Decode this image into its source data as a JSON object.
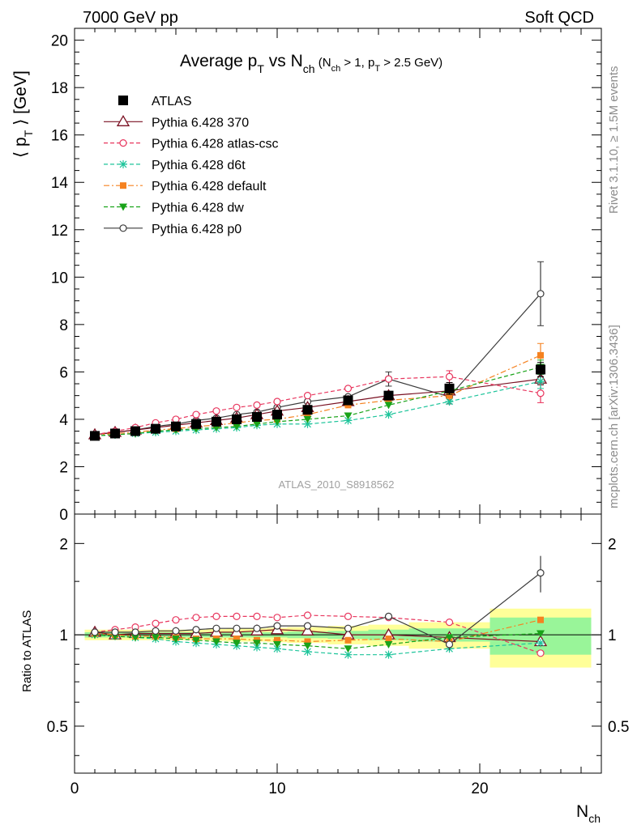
{
  "header": {
    "energy_label": "7000 GeV pp",
    "process_label": "Soft QCD",
    "plot_title": "Average p_T vs N_ch",
    "title_main": "Average p",
    "title_sub_T": "T",
    "title_vs": " vs N",
    "title_sub_ch": "ch",
    "title_cuts_a": " (N",
    "title_cuts_b": " > 1, p",
    "title_cuts_c": " > 2.5 GeV)",
    "analysis_id": "ATLAS_2010_S8918562",
    "side_rivet": "Rivet 3.1.10, ≥ 1.5M events",
    "side_mcplots": "mcplots.cern.ch [arXiv:1306.3436]"
  },
  "axes": {
    "ylabel_main": "⟨ p_T ⟩ [GeV]",
    "ylabel_ratio": "Ratio to ATLAS",
    "xlabel": "N_ch",
    "xlabel_main": "N",
    "xlabel_sub": "ch"
  },
  "chart_data": [
    {
      "panel": "main",
      "type": "scatter",
      "xlim": [
        0,
        26
      ],
      "ylim": [
        0,
        20.5
      ],
      "x_ticks": [
        0,
        10,
        20
      ],
      "y_ticks": [
        0,
        2,
        4,
        6,
        8,
        10,
        12,
        14,
        16,
        18,
        20
      ],
      "grid": false,
      "legend_position": "top-left",
      "x": [
        1,
        2,
        3,
        4,
        5,
        6,
        7,
        8,
        9,
        10,
        11.5,
        13.5,
        15.5,
        18.5,
        23
      ],
      "series": [
        {
          "name": "ATLAS",
          "style": "data",
          "color": "#000000",
          "marker": "filled-square",
          "values": [
            3.3,
            3.4,
            3.5,
            3.6,
            3.7,
            3.8,
            3.9,
            4.0,
            4.1,
            4.2,
            4.4,
            4.8,
            5.0,
            5.3,
            6.1
          ],
          "errors": [
            0.05,
            0.05,
            0.05,
            0.05,
            0.05,
            0.05,
            0.05,
            0.05,
            0.05,
            0.06,
            0.08,
            0.1,
            0.15,
            0.25,
            0.3
          ]
        },
        {
          "name": "Pythia 6.428 370",
          "style": "solid",
          "color": "#7a1022",
          "marker": "open-triangle",
          "values": [
            3.35,
            3.45,
            3.55,
            3.65,
            3.75,
            3.85,
            3.95,
            4.05,
            4.2,
            4.35,
            4.5,
            4.75,
            5.0,
            5.2,
            5.7
          ],
          "errors": [
            0.02,
            0.02,
            0.02,
            0.02,
            0.02,
            0.02,
            0.03,
            0.03,
            0.03,
            0.04,
            0.05,
            0.07,
            0.1,
            0.15,
            0.25
          ]
        },
        {
          "name": "Pythia 6.428 atlas-csc",
          "style": "dashed",
          "color": "#e8365e",
          "marker": "open-circle",
          "values": [
            3.35,
            3.5,
            3.65,
            3.85,
            4.0,
            4.2,
            4.35,
            4.5,
            4.6,
            4.75,
            5.0,
            5.3,
            5.7,
            5.8,
            5.1
          ],
          "errors": [
            0.02,
            0.02,
            0.02,
            0.03,
            0.03,
            0.03,
            0.03,
            0.04,
            0.04,
            0.05,
            0.06,
            0.1,
            0.15,
            0.25,
            0.4
          ]
        },
        {
          "name": "Pythia 6.428 d6t",
          "style": "dashed",
          "color": "#1cc49a",
          "marker": "star",
          "values": [
            3.3,
            3.35,
            3.4,
            3.45,
            3.5,
            3.55,
            3.6,
            3.65,
            3.75,
            3.8,
            3.8,
            3.95,
            4.2,
            4.75,
            5.6
          ],
          "errors": [
            0.02,
            0.02,
            0.02,
            0.02,
            0.02,
            0.02,
            0.03,
            0.03,
            0.03,
            0.04,
            0.05,
            0.07,
            0.1,
            0.15,
            0.3
          ]
        },
        {
          "name": "Pythia 6.428 default",
          "style": "dashdot",
          "color": "#f58220",
          "marker": "filled-square-small",
          "values": [
            3.35,
            3.4,
            3.45,
            3.55,
            3.6,
            3.7,
            3.75,
            3.85,
            3.95,
            4.0,
            4.2,
            4.6,
            4.8,
            5.0,
            6.7
          ],
          "errors": [
            0.02,
            0.02,
            0.02,
            0.02,
            0.02,
            0.02,
            0.03,
            0.03,
            0.03,
            0.04,
            0.05,
            0.07,
            0.1,
            0.2,
            0.5
          ]
        },
        {
          "name": "Pythia 6.428 dw",
          "style": "dashed",
          "color": "#19a319",
          "marker": "filled-triangle-down",
          "values": [
            3.3,
            3.35,
            3.4,
            3.5,
            3.55,
            3.6,
            3.65,
            3.7,
            3.8,
            3.9,
            4.0,
            4.15,
            4.6,
            5.2,
            6.2
          ],
          "errors": [
            0.02,
            0.02,
            0.02,
            0.02,
            0.02,
            0.02,
            0.03,
            0.03,
            0.03,
            0.04,
            0.05,
            0.07,
            0.1,
            0.15,
            0.3
          ]
        },
        {
          "name": "Pythia 6.428 p0",
          "style": "solid",
          "color": "#3a3a3a",
          "marker": "open-circle",
          "values": [
            3.35,
            3.45,
            3.55,
            3.7,
            3.8,
            3.95,
            4.05,
            4.2,
            4.3,
            4.5,
            4.75,
            4.95,
            5.7,
            4.95,
            9.3
          ],
          "errors": [
            0.02,
            0.02,
            0.02,
            0.03,
            0.03,
            0.03,
            0.04,
            0.04,
            0.05,
            0.06,
            0.08,
            0.12,
            0.3,
            0.3,
            1.35
          ]
        }
      ]
    },
    {
      "panel": "ratio",
      "type": "scatter",
      "log_y": true,
      "xlim": [
        0,
        26
      ],
      "ylim": [
        0.35,
        2.5
      ],
      "x_ticks": [
        0,
        10,
        20
      ],
      "y_ticks": [
        0.5,
        1,
        2
      ],
      "reference_line": 1,
      "x": [
        1,
        2,
        3,
        4,
        5,
        6,
        7,
        8,
        9,
        10,
        11.5,
        13.5,
        15.5,
        18.5,
        23
      ],
      "uncertainty_bands": {
        "bin_edges": [
          0.5,
          1.5,
          2.5,
          3.5,
          4.5,
          5.5,
          6.5,
          7.5,
          8.5,
          9.5,
          10.5,
          12.5,
          14.5,
          16.5,
          20.5,
          25.5
        ],
        "inner_green": [
          0.02,
          0.02,
          0.02,
          0.02,
          0.02,
          0.02,
          0.02,
          0.02,
          0.02,
          0.02,
          0.025,
          0.03,
          0.04,
          0.05,
          0.14
        ],
        "outer_yellow": [
          0.04,
          0.04,
          0.04,
          0.04,
          0.04,
          0.04,
          0.045,
          0.05,
          0.05,
          0.055,
          0.06,
          0.07,
          0.08,
          0.1,
          0.22
        ]
      },
      "series": [
        {
          "name": "Pythia 6.428 370",
          "values": [
            1.02,
            1.0,
            1.01,
            1.01,
            1.01,
            1.01,
            1.02,
            1.02,
            1.03,
            1.04,
            1.03,
            1.0,
            1.0,
            0.98,
            0.95
          ]
        },
        {
          "name": "Pythia 6.428 atlas-csc",
          "values": [
            1.02,
            1.04,
            1.06,
            1.09,
            1.12,
            1.14,
            1.15,
            1.15,
            1.15,
            1.14,
            1.16,
            1.15,
            1.14,
            1.1,
            0.87
          ]
        },
        {
          "name": "Pythia 6.428 d6t",
          "values": [
            1.0,
            0.99,
            0.98,
            0.97,
            0.95,
            0.94,
            0.93,
            0.92,
            0.91,
            0.9,
            0.88,
            0.86,
            0.86,
            0.9,
            0.94
          ]
        },
        {
          "name": "Pythia 6.428 default",
          "values": [
            1.01,
            1.0,
            0.99,
            0.99,
            0.98,
            0.97,
            0.97,
            0.97,
            0.96,
            0.96,
            0.95,
            0.96,
            0.97,
            0.95,
            1.12
          ]
        },
        {
          "name": "Pythia 6.428 dw",
          "values": [
            1.0,
            0.99,
            0.98,
            0.98,
            0.97,
            0.96,
            0.95,
            0.94,
            0.94,
            0.93,
            0.92,
            0.9,
            0.93,
            0.98,
            1.01
          ]
        },
        {
          "name": "Pythia 6.428 p0",
          "values": [
            1.02,
            1.02,
            1.02,
            1.03,
            1.03,
            1.04,
            1.05,
            1.05,
            1.05,
            1.07,
            1.07,
            1.05,
            1.15,
            0.93,
            1.6
          ],
          "errors": [
            0,
            0,
            0,
            0,
            0,
            0,
            0,
            0,
            0,
            0,
            0,
            0,
            0.03,
            0.04,
            0.22
          ]
        }
      ]
    }
  ]
}
